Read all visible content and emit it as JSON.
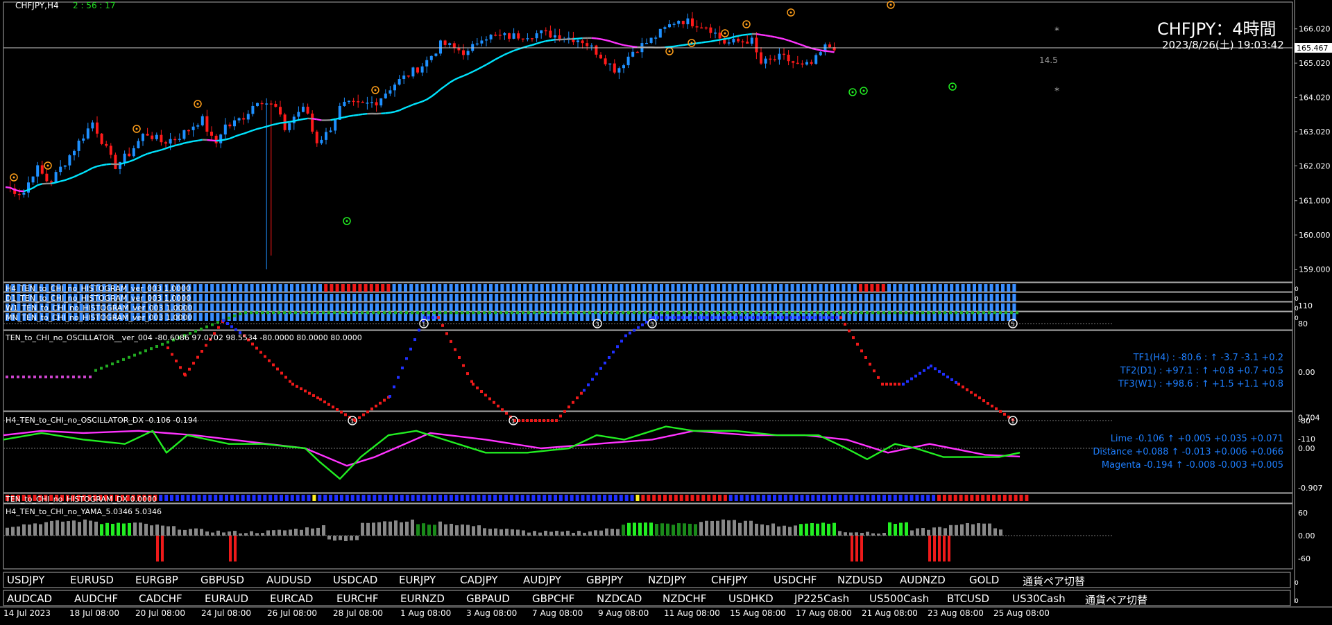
{
  "chart": {
    "symbol_tf": "CHFJPY,H4",
    "countdown": "2 : 56 : 17",
    "title": "CHFJPY：4時間",
    "datetime": "2023/8/26(土) 19:03:42",
    "current_price": "165.467",
    "spread": "14.5",
    "price_ticks": [
      "166.020",
      "165.020",
      "164.020",
      "163.020",
      "162.020",
      "161.000",
      "160.000",
      "159.000"
    ],
    "colors": {
      "bull": "#1e90ff",
      "bear": "#ff1a1a",
      "ma_up": "#00e5ff",
      "ma_down": "#ff33ff",
      "ma_flat": "#909090"
    }
  },
  "histogram_rows": [
    "H4_TEN_to_CHI_no_HISTOGRAM_ver_003 1.0000",
    "D1_TEN_to_CHI_no_HISTOGRAM_ver_003 1.0000",
    "W1_TEN_to_CHI_no_HISTOGRAM_ver_003 1.0000",
    "MN_TEN_to_CHI_no_HISTOGRAM_ver_003 1.0000"
  ],
  "oscillator": {
    "label": "TEN_to_CHI_no_OSCILLATOR__ver_004 -80.6086 97.0702 98.5534 -80.0000 80.0000 80.0000",
    "ticks": [
      "110",
      "80",
      "0.00",
      "-80",
      "-110"
    ],
    "tf_lines": [
      "TF1(H4) : -80.6 : ↑ -3.7 -3.1 +0.2",
      "TF2(D1) : +97.1 : ↑ +0.8 +0.7 +0.5",
      "TF3(W1) : +98.6 : ↑ +1.5 +1.1 +0.8"
    ]
  },
  "oscillator_dx": {
    "label": "H4_TEN_to_CHI_no_OSCILLATOR_DX -0.106 -0.194",
    "ticks": [
      "0.704",
      "0.00",
      "-0.907"
    ],
    "lines": [
      "Lime -0.106 ↑ +0.005 +0.035 +0.071",
      "Distance +0.088 ↑ -0.013 +0.006 +0.066",
      "Magenta -0.194 ↑ -0.008 -0.003 +0.005"
    ]
  },
  "histogram_dx": {
    "label": "TEN_to_CHI_no_HISTOGRAM_DX 0.0000"
  },
  "yama": {
    "label": "H4_TEN_to_CHI_no_YAMA_5.0346 5.0346",
    "ticks": [
      "60",
      "0.00",
      "-60"
    ]
  },
  "symbols_row1": [
    "USDJPY",
    "EURUSD",
    "EURGBP",
    "GBPUSD",
    "AUDUSD",
    "USDCAD",
    "EURJPY",
    "CADJPY",
    "AUDJPY",
    "GBPJPY",
    "NZDJPY",
    "CHFJPY",
    "USDCHF",
    "NZDUSD",
    "AUDNZD",
    "GOLD",
    "通貨ペア切替"
  ],
  "symbols_row2": [
    "AUDCAD",
    "AUDCHF",
    "CADCHF",
    "EURAUD",
    "EURCAD",
    "EURCHF",
    "EURNZD",
    "GBPAUD",
    "GBPCHF",
    "NZDCAD",
    "NZDCHF",
    "USDHKD",
    "JP225Cash",
    "US500Cash",
    "BTCUSD",
    "US30Cash",
    "通貨ペア切替"
  ],
  "time_axis": [
    "14 Jul 2023",
    "18 Jul 08:00",
    "20 Jul 08:00",
    "24 Jul 08:00",
    "26 Jul 08:00",
    "28 Jul 08:00",
    "1 Aug 08:00",
    "3 Aug 08:00",
    "7 Aug 08:00",
    "9 Aug 08:00",
    "11 Aug 08:00",
    "15 Aug 08:00",
    "17 Aug 08:00",
    "21 Aug 08:00",
    "23 Aug 08:00",
    "25 Aug 08:00"
  ]
}
